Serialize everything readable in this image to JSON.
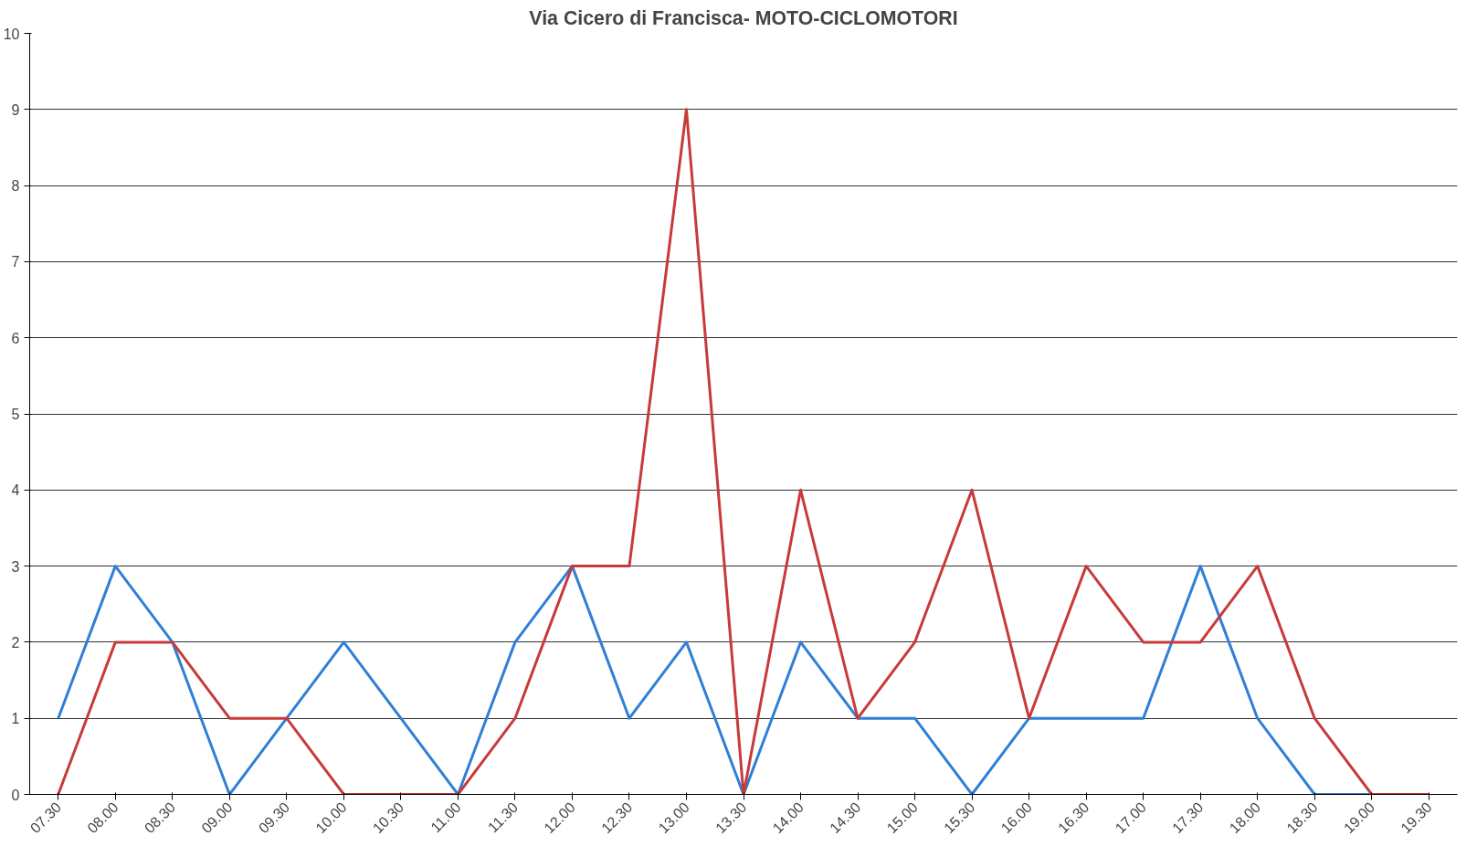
{
  "chart_data": {
    "type": "line",
    "title": "Via Cicero di Francisca- MOTO-CICLOMOTORI",
    "categories": [
      "07.30",
      "08.00",
      "08.30",
      "09.00",
      "09.30",
      "10.00",
      "10.30",
      "11.00",
      "11.30",
      "12.00",
      "12.30",
      "13.00",
      "13.30",
      "14.00",
      "14.30",
      "15.00",
      "15.30",
      "16.00",
      "16.30",
      "17.00",
      "17.30",
      "18.00",
      "18.30",
      "19.00",
      "19.30"
    ],
    "series": [
      {
        "color": "#2f7fd8",
        "values": [
          1,
          3,
          2,
          0,
          1,
          2,
          1,
          0,
          2,
          3,
          1,
          2,
          0,
          2,
          1,
          1,
          0,
          1,
          1,
          1,
          3,
          1,
          0,
          0,
          0
        ]
      },
      {
        "color": "#c83a3a",
        "values": [
          0,
          2,
          2,
          1,
          1,
          0,
          0,
          0,
          1,
          3,
          3,
          9,
          0,
          4,
          1,
          2,
          4,
          1,
          3,
          2,
          2,
          3,
          1,
          0,
          0
        ]
      }
    ],
    "ylim": [
      0,
      10
    ],
    "yticks": [
      0,
      1,
      2,
      3,
      4,
      5,
      6,
      7,
      8,
      9,
      10
    ],
    "grid": "y",
    "marker": "none",
    "line_style": "solid"
  }
}
